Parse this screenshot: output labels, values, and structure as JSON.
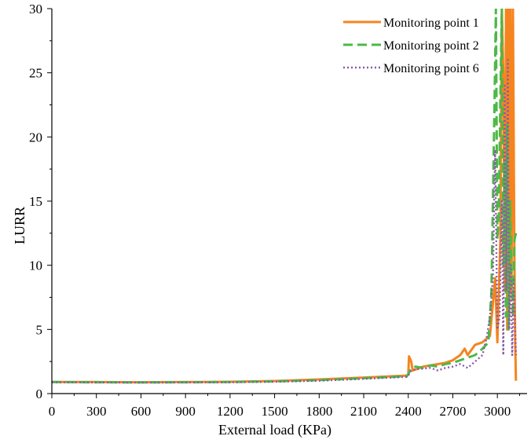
{
  "chart_data": {
    "type": "line",
    "xlabel": "External load (KPa)",
    "ylabel": "LURR",
    "xlim": [
      0,
      3200
    ],
    "ylim": [
      0,
      30
    ],
    "xticks": [
      0,
      300,
      600,
      900,
      1200,
      1500,
      1800,
      2100,
      2400,
      2700,
      3000
    ],
    "yticks": [
      0,
      5,
      10,
      15,
      20,
      25,
      30
    ],
    "grid": false,
    "legend_position": "top-right",
    "series": [
      {
        "name": "Monitoring point 1",
        "color": "#F5841F",
        "style": "solid",
        "points": [
          [
            0,
            0.9
          ],
          [
            300,
            0.9
          ],
          [
            600,
            0.88
          ],
          [
            900,
            0.9
          ],
          [
            1200,
            0.92
          ],
          [
            1500,
            0.98
          ],
          [
            1800,
            1.1
          ],
          [
            2100,
            1.25
          ],
          [
            2390,
            1.4
          ],
          [
            2400,
            1.5
          ],
          [
            2405,
            2.9
          ],
          [
            2420,
            2.5
          ],
          [
            2430,
            1.8
          ],
          [
            2500,
            2.1
          ],
          [
            2550,
            2.2
          ],
          [
            2600,
            2.3
          ],
          [
            2650,
            2.4
          ],
          [
            2700,
            2.6
          ],
          [
            2750,
            3.0
          ],
          [
            2780,
            3.5
          ],
          [
            2800,
            3.0
          ],
          [
            2850,
            3.8
          ],
          [
            2900,
            4.0
          ],
          [
            2950,
            4.5
          ],
          [
            2970,
            7.0
          ],
          [
            2985,
            9.0
          ],
          [
            3000,
            4.0
          ],
          [
            3010,
            8.0
          ],
          [
            3020,
            12.0
          ],
          [
            3030,
            30.0
          ],
          [
            3040,
            25.0
          ],
          [
            3050,
            8.0
          ],
          [
            3058,
            30.0
          ],
          [
            3066,
            5.0
          ],
          [
            3074,
            30.0
          ],
          [
            3080,
            6.0
          ],
          [
            3088,
            30.0
          ],
          [
            3095,
            8.0
          ],
          [
            3105,
            30.0
          ],
          [
            3115,
            10.0
          ],
          [
            3120,
            4.0
          ],
          [
            3125,
            1.0
          ]
        ]
      },
      {
        "name": "Monitoring point 2",
        "color": "#4DB848",
        "style": "dashed",
        "points": [
          [
            0,
            0.9
          ],
          [
            300,
            0.88
          ],
          [
            600,
            0.87
          ],
          [
            900,
            0.88
          ],
          [
            1200,
            0.9
          ],
          [
            1500,
            0.95
          ],
          [
            1800,
            1.05
          ],
          [
            2100,
            1.2
          ],
          [
            2390,
            1.35
          ],
          [
            2400,
            1.5
          ],
          [
            2420,
            2.0
          ],
          [
            2450,
            2.1
          ],
          [
            2500,
            2.0
          ],
          [
            2550,
            2.2
          ],
          [
            2600,
            2.1
          ],
          [
            2650,
            2.3
          ],
          [
            2700,
            2.4
          ],
          [
            2750,
            2.6
          ],
          [
            2800,
            2.8
          ],
          [
            2850,
            3.0
          ],
          [
            2900,
            3.5
          ],
          [
            2940,
            4.0
          ],
          [
            2960,
            8.0
          ],
          [
            2980,
            22.0
          ],
          [
            2990,
            30.0
          ],
          [
            3000,
            12.0
          ],
          [
            3010,
            14.0
          ],
          [
            3020,
            23.0
          ],
          [
            3030,
            30.0
          ],
          [
            3040,
            10.0
          ],
          [
            3050,
            18.0
          ],
          [
            3058,
            6.0
          ],
          [
            3066,
            21.0
          ],
          [
            3075,
            5.0
          ],
          [
            3085,
            15.0
          ],
          [
            3095,
            9.0
          ],
          [
            3105,
            6.0
          ],
          [
            3115,
            12.0
          ],
          [
            3125,
            12.5
          ]
        ]
      },
      {
        "name": "Monitoring point 6",
        "color": "#8A5BA8",
        "style": "dotted",
        "points": [
          [
            0,
            0.88
          ],
          [
            300,
            0.87
          ],
          [
            600,
            0.86
          ],
          [
            900,
            0.87
          ],
          [
            1200,
            0.88
          ],
          [
            1500,
            0.92
          ],
          [
            1800,
            1.0
          ],
          [
            2100,
            1.15
          ],
          [
            2390,
            1.3
          ],
          [
            2400,
            1.4
          ],
          [
            2420,
            1.8
          ],
          [
            2460,
            1.9
          ],
          [
            2500,
            1.95
          ],
          [
            2550,
            2.0
          ],
          [
            2600,
            1.8
          ],
          [
            2650,
            2.0
          ],
          [
            2700,
            2.1
          ],
          [
            2750,
            2.3
          ],
          [
            2800,
            2.0
          ],
          [
            2850,
            2.5
          ],
          [
            2900,
            3.0
          ],
          [
            2930,
            4.5
          ],
          [
            2950,
            6.0
          ],
          [
            2970,
            9.0
          ],
          [
            2985,
            19.0
          ],
          [
            3000,
            5.0
          ],
          [
            3015,
            6.0
          ],
          [
            3030,
            15.0
          ],
          [
            3040,
            3.0
          ],
          [
            3050,
            24.0
          ],
          [
            3060,
            8.0
          ],
          [
            3070,
            26.0
          ],
          [
            3080,
            5.0
          ],
          [
            3090,
            10.0
          ],
          [
            3100,
            3.0
          ],
          [
            3110,
            9.0
          ],
          [
            3120,
            5.0
          ],
          [
            3125,
            3.0
          ]
        ]
      }
    ]
  }
}
